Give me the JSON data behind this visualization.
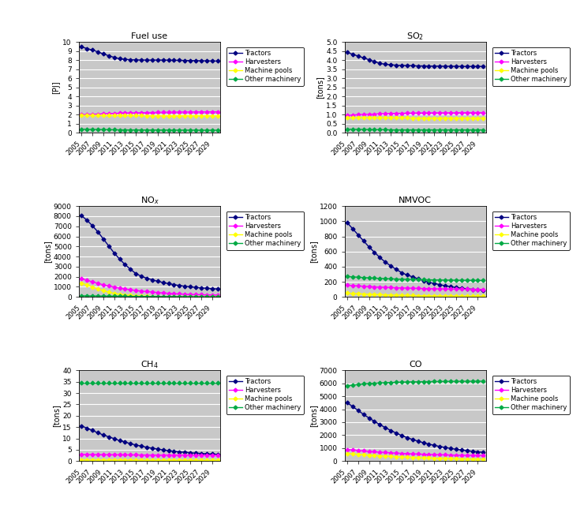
{
  "years": [
    2005,
    2006,
    2007,
    2008,
    2009,
    2010,
    2011,
    2012,
    2013,
    2014,
    2015,
    2016,
    2017,
    2018,
    2019,
    2020,
    2021,
    2022,
    2023,
    2024,
    2025,
    2026,
    2027,
    2028,
    2029,
    2030
  ],
  "fuel_use": {
    "Tractors": [
      9.45,
      9.27,
      9.1,
      8.9,
      8.68,
      8.48,
      8.3,
      8.15,
      8.08,
      8.04,
      8.02,
      8.01,
      8.0,
      8.0,
      8.0,
      8.0,
      7.99,
      7.98,
      7.97,
      7.96,
      7.95,
      7.94,
      7.93,
      7.92,
      7.91,
      7.9
    ],
    "Harvesters": [
      1.98,
      2.0,
      2.03,
      2.06,
      2.08,
      2.11,
      2.13,
      2.16,
      2.18,
      2.19,
      2.2,
      2.21,
      2.22,
      2.23,
      2.24,
      2.25,
      2.25,
      2.26,
      2.27,
      2.28,
      2.28,
      2.29,
      2.29,
      2.3,
      2.3,
      2.31
    ],
    "Machine pools": [
      1.9,
      1.9,
      1.9,
      1.9,
      1.9,
      1.89,
      1.89,
      1.89,
      1.89,
      1.89,
      1.89,
      1.89,
      1.88,
      1.88,
      1.88,
      1.88,
      1.87,
      1.87,
      1.87,
      1.87,
      1.87,
      1.87,
      1.87,
      1.87,
      1.87,
      1.87
    ],
    "Other machinery": [
      0.4,
      0.38,
      0.37,
      0.36,
      0.35,
      0.34,
      0.33,
      0.32,
      0.32,
      0.31,
      0.31,
      0.31,
      0.3,
      0.3,
      0.3,
      0.3,
      0.29,
      0.29,
      0.29,
      0.29,
      0.29,
      0.29,
      0.28,
      0.28,
      0.28,
      0.28
    ]
  },
  "fuel_ylim": [
    0,
    10
  ],
  "fuel_yticks": [
    0,
    1,
    2,
    3,
    4,
    5,
    6,
    7,
    8,
    9,
    10
  ],
  "fuel_ylabel": "[PJ]",
  "so2": {
    "Tractors": [
      4.42,
      4.32,
      4.22,
      4.12,
      4.02,
      3.92,
      3.82,
      3.77,
      3.74,
      3.72,
      3.71,
      3.7,
      3.69,
      3.68,
      3.68,
      3.67,
      3.67,
      3.67,
      3.66,
      3.66,
      3.66,
      3.65,
      3.65,
      3.65,
      3.65,
      3.65
    ],
    "Harvesters": [
      0.96,
      0.98,
      1.0,
      1.01,
      1.02,
      1.03,
      1.04,
      1.05,
      1.06,
      1.07,
      1.07,
      1.08,
      1.08,
      1.09,
      1.09,
      1.09,
      1.1,
      1.1,
      1.1,
      1.1,
      1.1,
      1.11,
      1.11,
      1.11,
      1.11,
      1.11
    ],
    "Machine pools": [
      0.83,
      0.83,
      0.83,
      0.83,
      0.83,
      0.82,
      0.82,
      0.82,
      0.82,
      0.82,
      0.82,
      0.82,
      0.81,
      0.81,
      0.81,
      0.81,
      0.81,
      0.81,
      0.81,
      0.81,
      0.81,
      0.81,
      0.81,
      0.81,
      0.81,
      0.81
    ],
    "Other machinery": [
      0.2,
      0.19,
      0.19,
      0.18,
      0.18,
      0.17,
      0.17,
      0.17,
      0.16,
      0.16,
      0.16,
      0.16,
      0.16,
      0.16,
      0.16,
      0.16,
      0.16,
      0.16,
      0.16,
      0.16,
      0.16,
      0.16,
      0.16,
      0.16,
      0.16,
      0.16
    ]
  },
  "so2_ylim": [
    0.0,
    5.0
  ],
  "so2_yticks": [
    0.0,
    0.5,
    1.0,
    1.5,
    2.0,
    2.5,
    3.0,
    3.5,
    4.0,
    4.5,
    5.0
  ],
  "so2_ylabel": "[tons]",
  "nox": {
    "Tractors": [
      8050,
      7600,
      7050,
      6450,
      5750,
      5050,
      4350,
      3750,
      3200,
      2750,
      2300,
      2050,
      1850,
      1700,
      1550,
      1430,
      1320,
      1220,
      1130,
      1060,
      1000,
      950,
      900,
      860,
      820,
      790
    ],
    "Harvesters": [
      1800,
      1650,
      1500,
      1350,
      1200,
      1080,
      980,
      880,
      790,
      710,
      640,
      580,
      530,
      480,
      435,
      395,
      360,
      328,
      300,
      275,
      255,
      237,
      222,
      208,
      196,
      186
    ],
    "Machine pools": [
      1380,
      1180,
      980,
      790,
      620,
      480,
      360,
      270,
      200,
      150,
      110,
      85,
      65,
      50,
      40,
      32,
      26,
      21,
      17,
      14,
      12,
      10,
      9,
      8,
      7,
      6
    ],
    "Other machinery": [
      110,
      103,
      97,
      91,
      85,
      79,
      73,
      68,
      62,
      57,
      52,
      47,
      43,
      39,
      35,
      32,
      29,
      26,
      24,
      21,
      19,
      17,
      16,
      14,
      13,
      12
    ]
  },
  "nox_ylim": [
    0,
    9000
  ],
  "nox_yticks": [
    0,
    1000,
    2000,
    3000,
    4000,
    5000,
    6000,
    7000,
    8000,
    9000
  ],
  "nox_ylabel": "[tons]",
  "nmvoc": {
    "Tractors": [
      980,
      900,
      820,
      740,
      660,
      590,
      520,
      460,
      410,
      365,
      320,
      290,
      265,
      240,
      215,
      195,
      178,
      162,
      148,
      136,
      125,
      116,
      108,
      101,
      95,
      90
    ],
    "Harvesters": [
      155,
      150,
      145,
      141,
      137,
      133,
      130,
      127,
      124,
      121,
      119,
      117,
      115,
      113,
      111,
      110,
      108,
      107,
      106,
      105,
      104,
      103,
      102,
      101,
      100,
      100
    ],
    "Machine pools": [
      50,
      46,
      42,
      39,
      36,
      33,
      30,
      28,
      26,
      24,
      22,
      20,
      19,
      17,
      16,
      15,
      14,
      13,
      12,
      11,
      11,
      10,
      10,
      9,
      9,
      8
    ],
    "Other machinery": [
      270,
      265,
      260,
      256,
      252,
      248,
      245,
      242,
      239,
      237,
      235,
      233,
      231,
      229,
      228,
      226,
      225,
      224,
      223,
      222,
      221,
      220,
      220,
      219,
      218,
      218
    ]
  },
  "nmvoc_ylim": [
    0,
    1200
  ],
  "nmvoc_yticks": [
    0,
    200,
    400,
    600,
    800,
    1000,
    1200
  ],
  "nmvoc_ylabel": "[tons]",
  "ch4": {
    "Tractors": [
      15.5,
      14.5,
      13.5,
      12.5,
      11.5,
      10.7,
      9.9,
      9.1,
      8.4,
      7.7,
      7.1,
      6.6,
      6.1,
      5.7,
      5.3,
      4.9,
      4.6,
      4.4,
      4.1,
      3.9,
      3.7,
      3.5,
      3.4,
      3.2,
      3.1,
      3.0
    ],
    "Harvesters": [
      3.0,
      2.95,
      2.9,
      2.87,
      2.84,
      2.81,
      2.79,
      2.77,
      2.75,
      2.73,
      2.72,
      2.71,
      2.7,
      2.69,
      2.68,
      2.67,
      2.67,
      2.66,
      2.66,
      2.65,
      2.65,
      2.65,
      2.64,
      2.64,
      2.64,
      2.63
    ],
    "Machine pools": [
      0.55,
      0.53,
      0.51,
      0.49,
      0.48,
      0.46,
      0.45,
      0.43,
      0.42,
      0.41,
      0.4,
      0.4,
      0.39,
      0.39,
      0.38,
      0.38,
      0.37,
      0.37,
      0.37,
      0.36,
      0.36,
      0.36,
      0.36,
      0.36,
      0.35,
      0.35
    ],
    "Other machinery": [
      34.5,
      34.5,
      34.5,
      34.5,
      34.5,
      34.5,
      34.5,
      34.5,
      34.5,
      34.5,
      34.5,
      34.5,
      34.5,
      34.5,
      34.5,
      34.5,
      34.5,
      34.5,
      34.5,
      34.5,
      34.5,
      34.5,
      34.5,
      34.5,
      34.5,
      34.5
    ]
  },
  "ch4_ylim": [
    0,
    40
  ],
  "ch4_yticks": [
    0,
    5,
    10,
    15,
    20,
    25,
    30,
    35,
    40
  ],
  "ch4_ylabel": "[tons]",
  "co": {
    "Tractors": [
      4500,
      4200,
      3900,
      3600,
      3320,
      3060,
      2810,
      2580,
      2360,
      2160,
      1970,
      1810,
      1670,
      1540,
      1420,
      1310,
      1215,
      1130,
      1050,
      980,
      915,
      860,
      808,
      760,
      718,
      680
    ],
    "Harvesters": [
      900,
      860,
      820,
      785,
      750,
      720,
      690,
      665,
      640,
      618,
      597,
      578,
      561,
      545,
      530,
      517,
      505,
      494,
      483,
      474,
      465,
      457,
      449,
      442,
      436,
      430
    ],
    "Machine pools": [
      590,
      555,
      520,
      488,
      458,
      430,
      404,
      380,
      357,
      336,
      316,
      298,
      281,
      265,
      250,
      236,
      223,
      211,
      200,
      189,
      179,
      170,
      161,
      153,
      145,
      138
    ],
    "Other machinery": [
      5800,
      5860,
      5910,
      5950,
      5980,
      6000,
      6020,
      6040,
      6060,
      6075,
      6090,
      6100,
      6110,
      6118,
      6125,
      6130,
      6135,
      6140,
      6143,
      6147,
      6150,
      6152,
      6154,
      6156,
      6158,
      6160
    ]
  },
  "co_ylim": [
    0,
    7000
  ],
  "co_yticks": [
    0,
    1000,
    2000,
    3000,
    4000,
    5000,
    6000,
    7000
  ],
  "co_ylabel": "[tons]",
  "colors": {
    "Tractors": "#000080",
    "Harvesters": "#ff00ff",
    "Machine pools": "#ffff00",
    "Other machinery": "#00aa44"
  },
  "plot_bg": "#c8c8c8",
  "legend_order": [
    "Tractors",
    "Harvesters",
    "Machine pools",
    "Other machinery"
  ],
  "marker": "D",
  "markersize": 2.5,
  "linewidth": 1.0
}
